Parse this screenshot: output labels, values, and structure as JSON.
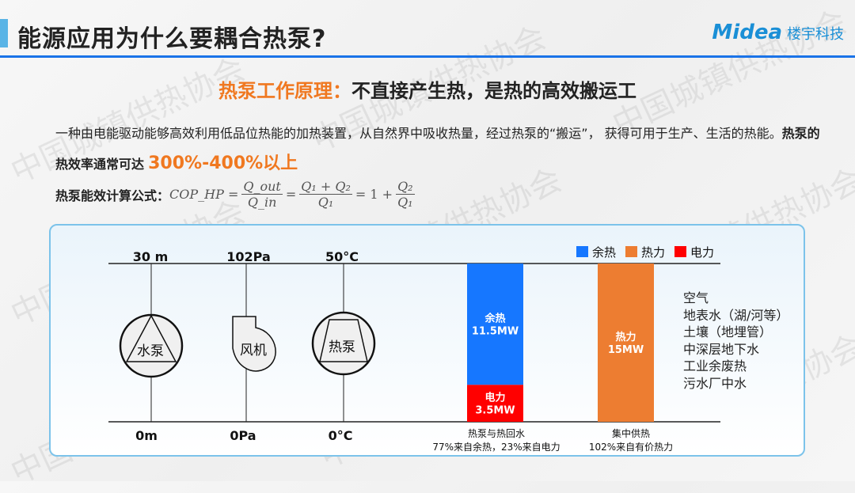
{
  "header": {
    "title": "能源应用为什么要耦合热泵?",
    "logo_brand": "Midea",
    "logo_sub": "楼宇科技",
    "accent_color": "#1a73e8"
  },
  "watermark": "中国城镇供热协会",
  "subtitle": {
    "highlight": "热泵工作原理：",
    "rest": "不直接产生热，是热的高效搬运工"
  },
  "paragraph": {
    "text1": "一种由电能驱动能够高效利用低品位热能的加热装置，从自然界中吸收热量，经过热泵的“搬运”， 获得可用于生产、生活的热能。",
    "bold": "热泵的热效率通常可达",
    "big": "300%-400%以上"
  },
  "formula": {
    "label": "热泵能效计算公式：",
    "lhs": "COP_HP =",
    "f1_num": "Q_out",
    "f1_den": "Q_in",
    "eq": "=",
    "f2_num": "Q₁ + Q₂",
    "f2_den": "Q₁",
    "eq2": "= 1 +",
    "f3_num": "Q₂",
    "f3_den": "Q₁"
  },
  "diagram": {
    "devices": [
      {
        "top": "30 m",
        "bottom": "0m",
        "name": "水泵"
      },
      {
        "top": "102Pa",
        "bottom": "0Pa",
        "name": "风机"
      },
      {
        "top": "50°C",
        "bottom": "0°C",
        "name": "热泵"
      }
    ],
    "legend": [
      {
        "label": "余热",
        "color": "#1677ff"
      },
      {
        "label": "热力",
        "color": "#ed7d31"
      },
      {
        "label": "电力",
        "color": "#ff0000"
      }
    ],
    "bars": [
      {
        "segments": [
          {
            "label": "余热",
            "value": "11.5MW",
            "mw": 11.5,
            "color": "#1677ff"
          },
          {
            "label": "电力",
            "value": "3.5MW",
            "mw": 3.5,
            "color": "#ff0000"
          }
        ],
        "caption1": "热泵与热回水",
        "caption2": "77%来自余热，23%来自电力"
      },
      {
        "segments": [
          {
            "label": "热力",
            "value": "15MW",
            "mw": 15,
            "color": "#ed7d31"
          }
        ],
        "caption1": "集中供热",
        "caption2": "102%来自有价热力"
      }
    ],
    "sources": [
      "空气",
      "地表水（湖/河等）",
      "土壤（地埋管）",
      "中深层地下水",
      "工业余废热",
      "污水厂中水"
    ]
  }
}
